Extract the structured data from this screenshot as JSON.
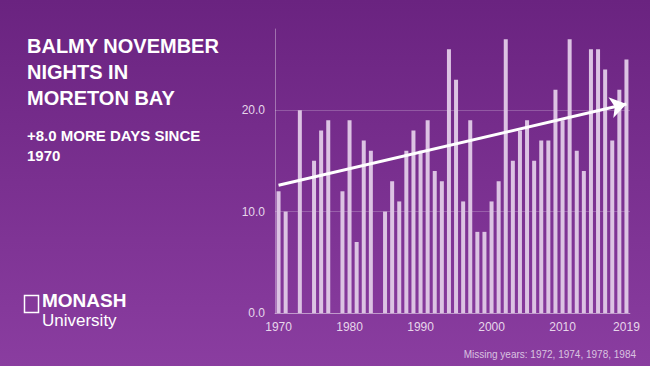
{
  "chart_data": {
    "type": "bar",
    "title": "BALMY NOVEMBER\nNIGHTS IN\nMORETON BAY",
    "subtitle": "+8.0 MORE DAYS SINCE\n1970",
    "annotations": [
      "MONASH",
      "University",
      "Missing years: 1972, 1974, 1978, 1984"
    ],
    "x": [
      1970,
      1971,
      1972,
      1973,
      1974,
      1975,
      1976,
      1977,
      1978,
      1979,
      1980,
      1981,
      1982,
      1983,
      1984,
      1985,
      1986,
      1987,
      1988,
      1989,
      1990,
      1991,
      1992,
      1993,
      1994,
      1995,
      1996,
      1997,
      1998,
      1999,
      2000,
      2001,
      2002,
      2003,
      2004,
      2005,
      2006,
      2007,
      2008,
      2009,
      2010,
      2011,
      2012,
      2013,
      2014,
      2015,
      2016,
      2017,
      2018,
      2019
    ],
    "values": [
      12,
      10,
      null,
      20,
      null,
      15,
      18,
      19,
      null,
      12,
      19,
      7,
      17,
      16,
      null,
      10,
      13,
      11,
      16,
      18,
      16,
      19,
      14,
      13,
      26,
      23,
      11,
      19,
      8,
      8,
      11,
      13,
      27,
      15,
      18,
      19,
      15,
      17,
      17,
      22,
      19,
      27,
      16,
      14,
      26,
      26,
      24,
      17,
      22,
      25
    ],
    "color": "#dcc3e3",
    "xlim": [
      1969.5,
      2019.5
    ],
    "xticks": [
      1970,
      1980,
      1990,
      2000,
      2010,
      2019
    ],
    "ylim": [
      0,
      28
    ],
    "yticks": [
      {
        "value": 0,
        "label": "0.0"
      },
      {
        "value": 10,
        "label": "10.0"
      },
      {
        "value": 20,
        "label": "20.0"
      }
    ],
    "grid": true,
    "trend": {
      "x": [
        1970,
        2019
      ],
      "values": [
        12.6,
        20.6
      ]
    }
  }
}
